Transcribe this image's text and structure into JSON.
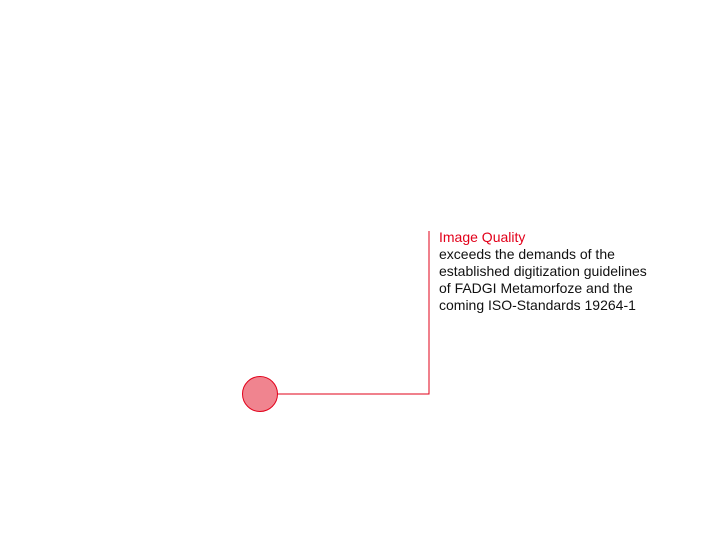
{
  "callout": {
    "title": "Image Quality",
    "body": "exceeds the demands of the\nestablished digitization guidelines\nof FADGI Metamorfoze and the\ncoming ISO-Standards 19264-1"
  },
  "colors": {
    "accent": "#e2001a",
    "marker_fill": "#f0848f"
  }
}
